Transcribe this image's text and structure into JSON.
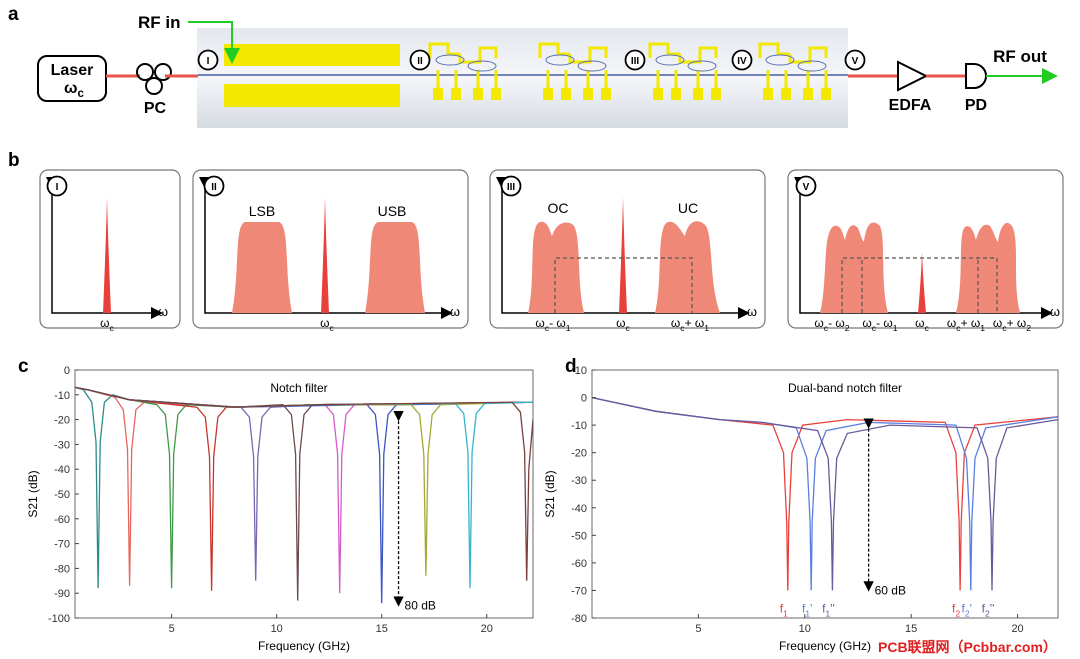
{
  "panel_a": {
    "label": "a",
    "rf_in": "RF in",
    "laser": "Laser",
    "laser_freq": [
      {
        "t": "ω"
      },
      {
        "s": "c"
      }
    ],
    "pc": "PC",
    "stages": [
      "I",
      "II",
      "III",
      "IV",
      "V"
    ],
    "edfa": "EDFA",
    "pd": "PD",
    "rf_out": "RF out"
  },
  "panel_b": {
    "label": "b",
    "boxes": [
      {
        "stage": "I",
        "axis": "ω",
        "ticks": [
          [
            {
              "t": "ω"
            },
            {
              "s": "c"
            }
          ]
        ]
      },
      {
        "stage": "II",
        "axis": "ω",
        "bands": [
          "LSB",
          "USB"
        ],
        "ticks": [
          [
            {
              "t": "ω"
            },
            {
              "s": "c"
            }
          ]
        ]
      },
      {
        "stage": "III",
        "axis": "ω",
        "bands": [
          "OC",
          "UC"
        ],
        "ticks": [
          [
            {
              "t": "ω"
            },
            {
              "s": "c"
            },
            {
              "t": "- ω"
            },
            {
              "s": "1"
            }
          ],
          [
            {
              "t": "ω"
            },
            {
              "s": "c"
            }
          ],
          [
            {
              "t": "ω"
            },
            {
              "s": "c"
            },
            {
              "t": "+ ω"
            },
            {
              "s": "1"
            }
          ]
        ]
      },
      {
        "stage": "V",
        "axis": "ω",
        "ticks": [
          [
            {
              "t": "ω"
            },
            {
              "s": "c"
            },
            {
              "t": "- ω"
            },
            {
              "s": "2"
            }
          ],
          [
            {
              "t": "ω"
            },
            {
              "s": "c"
            },
            {
              "t": "- ω"
            },
            {
              "s": "1"
            }
          ],
          [
            {
              "t": "ω"
            },
            {
              "s": "c"
            }
          ],
          [
            {
              "t": "ω"
            },
            {
              "s": "c"
            },
            {
              "t": "+ ω"
            },
            {
              "s": "1"
            }
          ],
          [
            {
              "t": "ω"
            },
            {
              "s": "c"
            },
            {
              "t": "+ ω"
            },
            {
              "s": "2"
            }
          ]
        ]
      }
    ]
  },
  "chart_data": [
    {
      "type": "line",
      "panel_label": "c",
      "title": "Notch filter",
      "x_label": "Frequency (GHz)",
      "y_label": "S21 (dB)",
      "xlim": [
        0.4,
        22.2
      ],
      "xticks": [
        5,
        10,
        15,
        20
      ],
      "ylim": [
        -100,
        0
      ],
      "yticks": [
        0,
        -10,
        -20,
        -30,
        -40,
        -50,
        -60,
        -70,
        -80,
        -90,
        -100
      ],
      "depth_arrow": {
        "x": 15.8,
        "y": [
          -17,
          -95
        ],
        "label": "80 dB"
      },
      "series": [
        {
          "color": "#2e8b8b",
          "x": [
            0.4,
            0.8,
            1.2,
            1.4,
            1.5,
            1.6,
            1.8,
            2.2,
            3,
            8,
            12,
            22.2
          ],
          "values": [
            -7,
            -8,
            -13,
            -29,
            -88,
            -29,
            -13,
            -10,
            -12,
            -15,
            -14,
            -13
          ]
        },
        {
          "color": "#e8665e",
          "x": [
            0.4,
            1,
            2.3,
            2.7,
            2.9,
            3,
            3.1,
            3.3,
            3.7,
            8,
            12,
            22.2
          ],
          "values": [
            -7,
            -8,
            -11,
            -16,
            -32,
            -87,
            -32,
            -16,
            -13,
            -15,
            -14,
            -13
          ]
        },
        {
          "color": "#3d9a46",
          "x": [
            0.4,
            1,
            3,
            4.3,
            4.7,
            4.9,
            5,
            5.1,
            5.3,
            5.7,
            8,
            12,
            22.2
          ],
          "values": [
            -7,
            -8,
            -12,
            -14,
            -18,
            -34,
            -88,
            -34,
            -18,
            -14,
            -15,
            -14,
            -13
          ]
        },
        {
          "color": "#c8332c",
          "x": [
            0.4,
            1,
            3,
            6.2,
            6.6,
            6.8,
            6.9,
            7,
            7.2,
            7.6,
            12,
            22.2
          ],
          "values": [
            -7,
            -8,
            -12,
            -15,
            -19,
            -35,
            -89,
            -35,
            -19,
            -15,
            -14,
            -13
          ]
        },
        {
          "color": "#7d64b4",
          "x": [
            0.4,
            1,
            3,
            8.3,
            8.7,
            8.9,
            9,
            9.1,
            9.3,
            9.7,
            12,
            22.2
          ],
          "values": [
            -7,
            -8,
            -12,
            -15,
            -19,
            -35,
            -85,
            -35,
            -19,
            -15,
            -14,
            -13
          ]
        },
        {
          "color": "#6b4a4a",
          "x": [
            0.4,
            1,
            3,
            8,
            10.3,
            10.7,
            10.9,
            11,
            11.1,
            11.3,
            11.7,
            16,
            22.2
          ],
          "values": [
            -7,
            -8,
            -12,
            -15,
            -14,
            -18,
            -34,
            -93,
            -34,
            -18,
            -14,
            -14,
            -13
          ]
        },
        {
          "color": "#d45cc8",
          "x": [
            0.4,
            1,
            3,
            8,
            12.3,
            12.7,
            12.9,
            13,
            13.1,
            13.3,
            13.7,
            16,
            22.2
          ],
          "values": [
            -7,
            -8,
            -12,
            -15,
            -14,
            -18,
            -34,
            -90,
            -34,
            -18,
            -14,
            -14,
            -13
          ]
        },
        {
          "color": "#3a55c4",
          "x": [
            0.4,
            1,
            3,
            8,
            14.3,
            14.7,
            14.9,
            15,
            15.1,
            15.3,
            15.7,
            22.2
          ],
          "values": [
            -7,
            -8,
            -12,
            -15,
            -14,
            -18,
            -34,
            -94,
            -34,
            -18,
            -14,
            -13
          ]
        },
        {
          "color": "#a5a832",
          "x": [
            0.4,
            1,
            3,
            8,
            12,
            16.4,
            16.8,
            17,
            17.1,
            17.2,
            17.4,
            17.8,
            22.2
          ],
          "values": [
            -7,
            -8,
            -12,
            -15,
            -14,
            -14,
            -18,
            -34,
            -83,
            -34,
            -18,
            -14,
            -13
          ]
        },
        {
          "color": "#38b3d0",
          "x": [
            0.4,
            1,
            3,
            8,
            12,
            18.5,
            18.9,
            19.1,
            19.2,
            19.3,
            19.5,
            19.9,
            22.2
          ],
          "values": [
            -7,
            -8,
            -12,
            -15,
            -14,
            -13.5,
            -17.5,
            -33,
            -88,
            -33,
            -17.5,
            -13.5,
            -13
          ]
        },
        {
          "color": "#7a4040",
          "x": [
            0.4,
            1,
            3,
            8,
            12,
            21.2,
            21.6,
            21.8,
            21.9,
            22,
            22.2
          ],
          "values": [
            -7,
            -8,
            -12,
            -15,
            -14,
            -13,
            -17,
            -33,
            -85,
            -40,
            -20
          ]
        }
      ]
    },
    {
      "type": "line",
      "panel_label": "d",
      "title": "Dual-band notch filter",
      "x_label": "Frequency (GHz)",
      "y_label": "S21 (dB)",
      "xlim": [
        0,
        21.9
      ],
      "xticks": [
        5,
        10,
        15,
        20
      ],
      "ylim": [
        -80,
        10
      ],
      "yticks": [
        10,
        0,
        -10,
        -20,
        -30,
        -40,
        -50,
        -60,
        -70,
        -80
      ],
      "depth_arrow": {
        "x": 13,
        "y": [
          -8,
          -70
        ],
        "label": "60 dB"
      },
      "series": [
        {
          "color": "#e8413c",
          "labels": [
            [
              {
                "t": "f"
              },
              {
                "s": "1"
              }
            ],
            [
              {
                "t": "f"
              },
              {
                "s": "2"
              }
            ]
          ],
          "x": [
            0,
            3,
            6,
            8.5,
            9,
            9.15,
            9.2,
            9.25,
            9.4,
            9.9,
            12,
            16.6,
            17.1,
            17.25,
            17.3,
            17.35,
            17.5,
            18,
            21.9
          ],
          "values": [
            0,
            -5,
            -8,
            -10,
            -20,
            -45,
            -70,
            -45,
            -20,
            -10,
            -8,
            -9,
            -20,
            -45,
            -70,
            -45,
            -20,
            -10,
            -7
          ]
        },
        {
          "color": "#5b7fe0",
          "labels": [
            [
              {
                "t": "f"
              },
              {
                "s": "1"
              },
              {
                "t": "'"
              }
            ],
            [
              {
                "t": "f"
              },
              {
                "s": "2"
              },
              {
                "t": "'"
              }
            ]
          ],
          "x": [
            0,
            3,
            6,
            8,
            9.6,
            10.1,
            10.25,
            10.3,
            10.35,
            10.5,
            11,
            13,
            17.1,
            17.6,
            17.75,
            17.8,
            17.85,
            18,
            18.5,
            21.9
          ],
          "values": [
            0,
            -5,
            -8,
            -9,
            -11,
            -22,
            -45,
            -70,
            -45,
            -22,
            -12,
            -9,
            -10,
            -22,
            -45,
            -70,
            -45,
            -22,
            -11,
            -7
          ]
        },
        {
          "color": "#6a5a9c",
          "labels": [
            [
              {
                "t": "f"
              },
              {
                "s": "1"
              },
              {
                "t": "''"
              }
            ],
            [
              {
                "t": "f"
              },
              {
                "s": "2"
              },
              {
                "t": "''"
              }
            ]
          ],
          "x": [
            0,
            3,
            6,
            8,
            10.6,
            11.1,
            11.25,
            11.3,
            11.35,
            11.5,
            12,
            14,
            18.1,
            18.6,
            18.75,
            18.8,
            18.85,
            19,
            19.5,
            21.9
          ],
          "values": [
            0,
            -5,
            -8,
            -9,
            -12,
            -22,
            -45,
            -70,
            -45,
            -22,
            -13,
            -10,
            -11,
            -22,
            -45,
            -70,
            -45,
            -22,
            -11,
            -8
          ]
        }
      ]
    }
  ],
  "watermark": "PCB联盟网（Pcbbar.com）"
}
